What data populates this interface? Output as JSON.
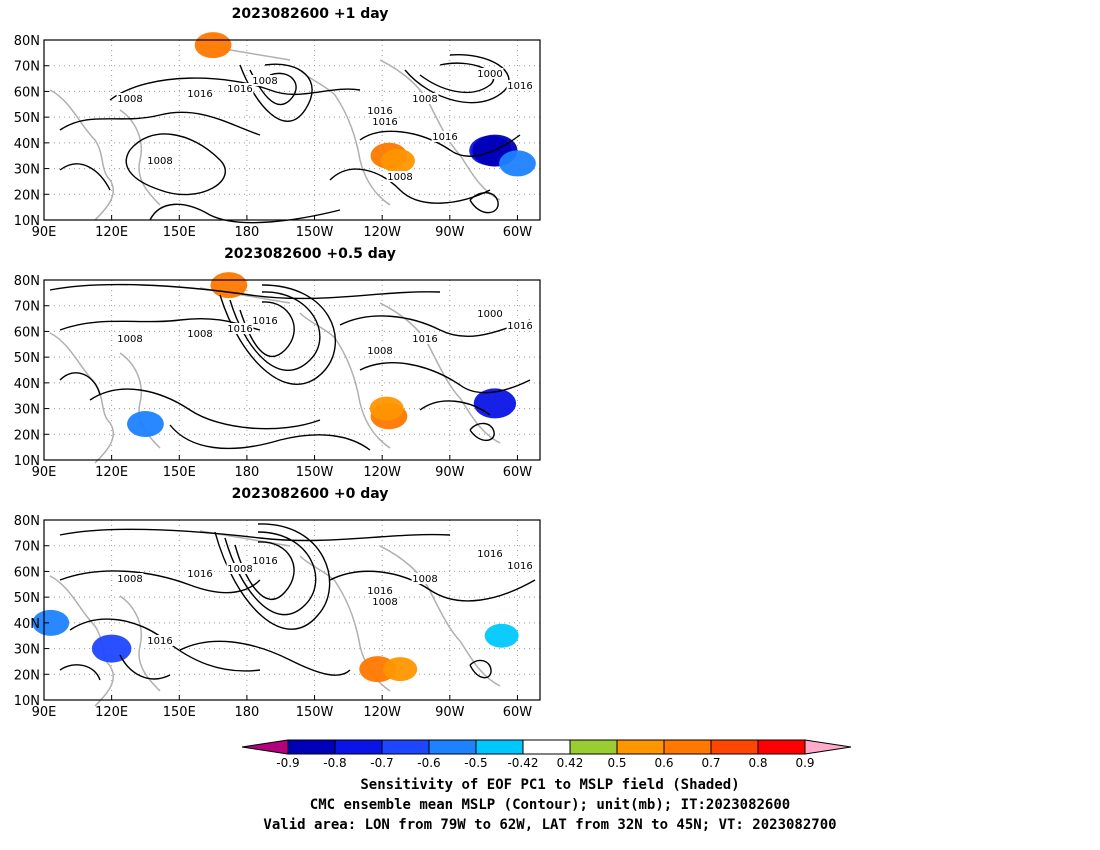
{
  "panels": [
    {
      "title": "2023082600  +1 day",
      "contour_labels": [
        "1008",
        "1016",
        "1008",
        "1016",
        "1016",
        "1000",
        "1008",
        "1016",
        "1016",
        "1008",
        "1008",
        "1016"
      ],
      "shaded_regions": [
        {
          "lon": 165,
          "lat": 78,
          "value": 0.6
        },
        {
          "lon": -117,
          "lat": 35,
          "value": 0.6
        },
        {
          "lon": -113,
          "lat": 33,
          "value": 0.5
        },
        {
          "lon": -72,
          "lat": 37,
          "value": -0.8
        },
        {
          "lon": -70,
          "lat": 37,
          "value": -0.9
        },
        {
          "lon": -60,
          "lat": 32,
          "value": -0.6
        }
      ]
    },
    {
      "title": "2023082600  +0.5 day",
      "contour_labels": [
        "1008",
        "1008",
        "1016",
        "1016",
        "1008",
        "1000",
        "1016",
        "1016"
      ],
      "shaded_regions": [
        {
          "lon": 172,
          "lat": 78,
          "value": 0.6
        },
        {
          "lon": -117,
          "lat": 27,
          "value": 0.6
        },
        {
          "lon": -118,
          "lat": 30,
          "value": 0.5
        },
        {
          "lon": -70,
          "lat": 32,
          "value": -0.8
        },
        {
          "lon": 135,
          "lat": 24,
          "value": -0.6
        }
      ]
    },
    {
      "title": "2023082600  +0 day",
      "contour_labels": [
        "1008",
        "1016",
        "1016",
        "1008",
        "1016",
        "1016",
        "1008",
        "1016",
        "1008",
        "1016"
      ],
      "shaded_regions": [
        {
          "lon": 120,
          "lat": 30,
          "value": -0.7
        },
        {
          "lon": 93,
          "lat": 40,
          "value": -0.6
        },
        {
          "lon": -122,
          "lat": 22,
          "value": 0.6
        },
        {
          "lon": -112,
          "lat": 22,
          "value": 0.5
        },
        {
          "lon": -67,
          "lat": 35,
          "value": -0.5
        }
      ]
    }
  ],
  "axes": {
    "lat_labels": [
      "80N",
      "70N",
      "60N",
      "50N",
      "40N",
      "30N",
      "20N",
      "10N"
    ],
    "lon_labels": [
      "90E",
      "120E",
      "150E",
      "180",
      "150W",
      "120W",
      "90W",
      "60W"
    ],
    "lon_range": [
      90,
      310
    ],
    "lat_range": [
      10,
      80
    ]
  },
  "colorbar": {
    "colors": [
      "#b5007e",
      "#0000b8",
      "#0a14e6",
      "#1e46ff",
      "#1e82ff",
      "#00c8ff",
      "#ffffff",
      "#9bcd32",
      "#ff9600",
      "#ff7800",
      "#ff4600",
      "#ff0000",
      "#ffaac8"
    ],
    "labels": [
      "-0.9",
      "-0.8",
      "-0.7",
      "-0.6",
      "-0.5",
      "-0.42",
      "0.42",
      "0.5",
      "0.6",
      "0.7",
      "0.8",
      "0.9"
    ]
  },
  "caption": {
    "line1": "Sensitivity of EOF PC1 to MSLP field (Shaded)",
    "line2": "CMC ensemble mean MSLP (Contour); unit(mb); IT:2023082600",
    "line3": "Valid area: LON from 79W to 62W, LAT from 32N to 45N; VT: 2023082700"
  }
}
